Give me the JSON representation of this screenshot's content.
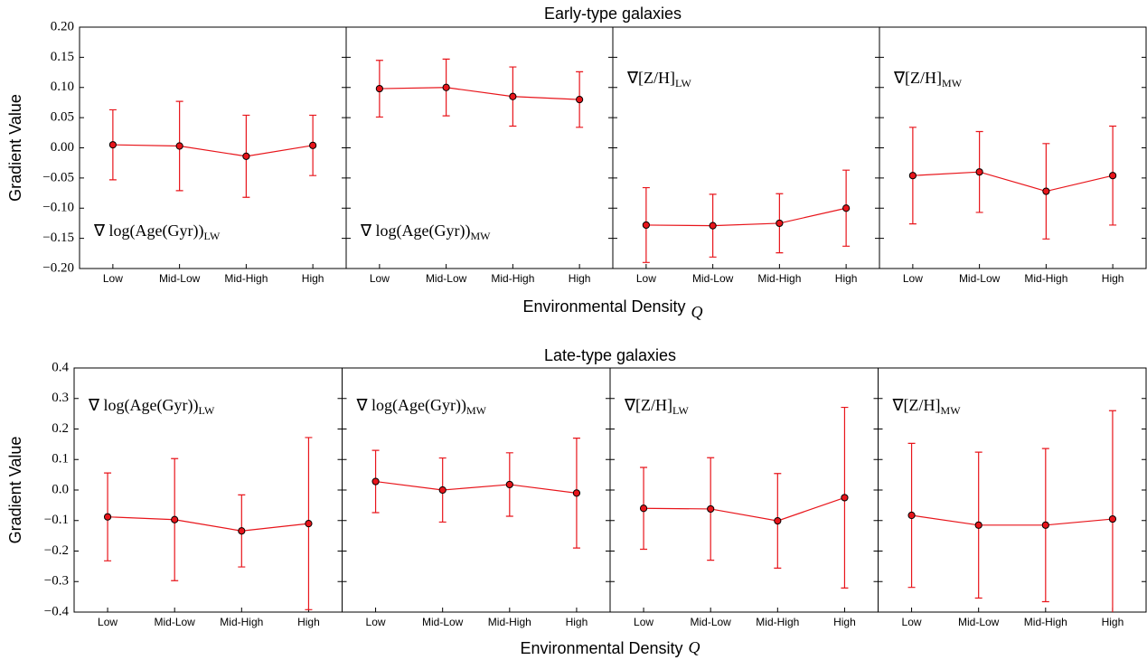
{
  "chart_data": [
    {
      "type": "errorbar",
      "title": "Early-type galaxies",
      "ylabel": "Gradient Value",
      "xlabel": "Environmental Density",
      "xlabel_symbol": "Q",
      "categories": [
        "Low",
        "Mid-Low",
        "Mid-High",
        "High"
      ],
      "color": "#e8151b",
      "ylim": [
        -0.2,
        0.2
      ],
      "yticks": [
        {
          "value": -0.2,
          "label": "−0.20"
        },
        {
          "value": -0.15,
          "label": "−0.15"
        },
        {
          "value": -0.1,
          "label": "−0.10"
        },
        {
          "value": -0.05,
          "label": "−0.05"
        },
        {
          "value": 0,
          "label": "0.00"
        },
        {
          "value": 0.05,
          "label": "0.05"
        },
        {
          "value": 0.1,
          "label": "0.10"
        },
        {
          "value": 0.15,
          "label": "0.15"
        },
        {
          "value": 0.2,
          "label": "0.20"
        }
      ],
      "panels": [
        {
          "label": "∇ log(Age(Gyr))",
          "label_sub": "LW",
          "values": [
            0.005,
            0.003,
            -0.014,
            0.004
          ],
          "errors": [
            0.058,
            0.074,
            0.068,
            0.05
          ]
        },
        {
          "label": "∇ log(Age(Gyr))",
          "label_sub": "MW",
          "values": [
            0.098,
            0.1,
            0.085,
            0.08
          ],
          "errors": [
            0.047,
            0.047,
            0.049,
            0.046
          ]
        },
        {
          "label": "∇[Z/H]",
          "label_sub": "LW",
          "values": [
            -0.128,
            -0.129,
            -0.125,
            -0.1
          ],
          "errors": [
            0.062,
            0.052,
            0.049,
            0.063
          ]
        },
        {
          "label": "∇[Z/H]",
          "label_sub": "MW",
          "values": [
            -0.046,
            -0.04,
            -0.072,
            -0.046
          ],
          "errors": [
            0.08,
            0.067,
            0.079,
            0.082
          ]
        }
      ]
    },
    {
      "type": "errorbar",
      "title": "Late-type galaxies",
      "ylabel": "Gradient Value",
      "xlabel": "Environmental Density",
      "xlabel_symbol": "Q",
      "categories": [
        "Low",
        "Mid-Low",
        "Mid-High",
        "High"
      ],
      "color": "#e8151b",
      "ylim": [
        -0.4,
        0.4
      ],
      "yticks": [
        {
          "value": -0.4,
          "label": "−0.4"
        },
        {
          "value": -0.3,
          "label": "−0.3"
        },
        {
          "value": -0.2,
          "label": "−0.2"
        },
        {
          "value": -0.1,
          "label": "−0.1"
        },
        {
          "value": 0,
          "label": "0.0"
        },
        0.1,
        0.2,
        0.3,
        0.4
      ],
      "panels": [
        {
          "label": "∇ log(Age(Gyr))",
          "label_sub": "LW",
          "values": [
            -0.088,
            -0.097,
            -0.134,
            -0.11
          ],
          "errors": [
            0.144,
            0.2,
            0.118,
            0.282
          ]
        },
        {
          "label": "∇ log(Age(Gyr))",
          "label_sub": "MW",
          "values": [
            0.028,
            0.0,
            0.018,
            -0.01
          ],
          "errors": [
            0.102,
            0.105,
            0.104,
            0.18
          ]
        },
        {
          "label": "∇[Z/H]",
          "label_sub": "LW",
          "values": [
            -0.06,
            -0.062,
            -0.101,
            -0.025
          ],
          "errors": [
            0.134,
            0.168,
            0.155,
            0.296
          ]
        },
        {
          "label": "∇[Z/H]",
          "label_sub": "MW",
          "values": [
            -0.083,
            -0.115,
            -0.115,
            -0.095
          ],
          "errors": [
            0.236,
            0.239,
            0.251,
            0.355
          ]
        }
      ]
    }
  ]
}
